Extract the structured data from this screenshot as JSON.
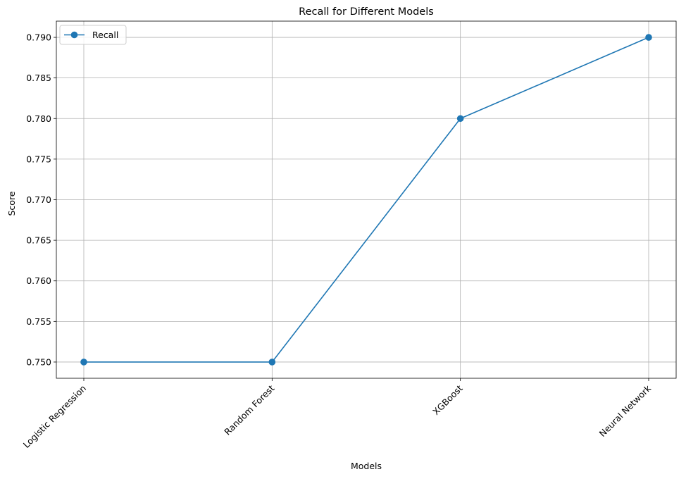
{
  "chart_data": {
    "type": "line",
    "title": "Recall for Different Models",
    "xlabel": "Models",
    "ylabel": "Score",
    "categories": [
      "Logistic Regression",
      "Random Forest",
      "XGBoost",
      "Neural Network"
    ],
    "series": [
      {
        "name": "Recall",
        "values": [
          0.75,
          0.75,
          0.78,
          0.79
        ],
        "color": "#1f77b4",
        "marker": "circle"
      }
    ],
    "ylim": [
      0.748,
      0.792
    ],
    "yticks": [
      "0.750",
      "0.755",
      "0.760",
      "0.765",
      "0.770",
      "0.775",
      "0.780",
      "0.785",
      "0.790"
    ],
    "grid": true,
    "legend_position": "top-left",
    "xtick_rotation_degrees": 45
  }
}
